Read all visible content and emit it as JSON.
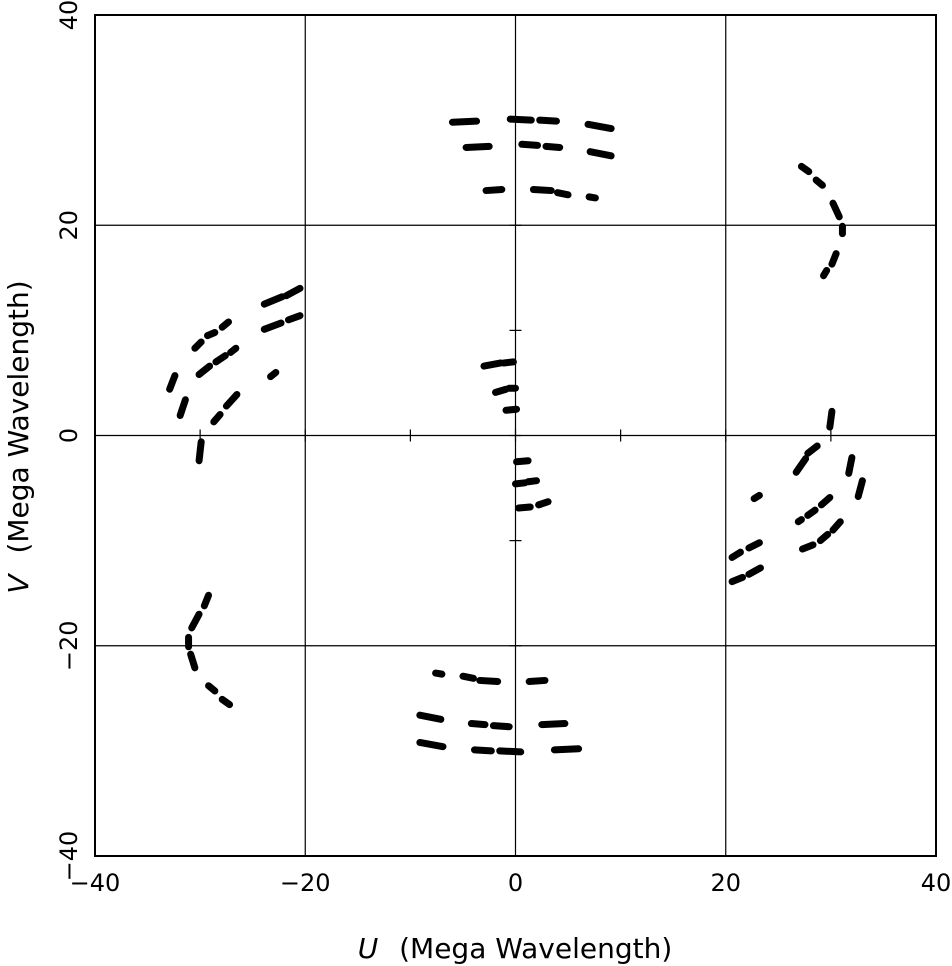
{
  "chart_data": {
    "type": "scatter",
    "xlabel_var": "U",
    "xlabel_unit": "(Mega Wavelength)",
    "ylabel_var": "V",
    "ylabel_unit": "(Mega Wavelength)",
    "xlim": [
      -40,
      40
    ],
    "ylim": [
      -40,
      40
    ],
    "x_ticks": [
      -40,
      -20,
      0,
      20,
      40
    ],
    "y_ticks": [
      -40,
      -20,
      0,
      20,
      40
    ],
    "x_tick_labels": [
      "−40",
      "−20",
      "0",
      "20",
      "40"
    ],
    "y_tick_labels": [
      "−40",
      "−20",
      "0",
      "20",
      "40"
    ],
    "grid": true,
    "marker_color": "#000000",
    "segments": [
      [
        [
          -6,
          29.8
        ],
        [
          -3.7,
          29.9
        ]
      ],
      [
        [
          -0.5,
          30.1
        ],
        [
          1.5,
          30.0
        ]
      ],
      [
        [
          2.3,
          30.0
        ],
        [
          3.9,
          29.9
        ]
      ],
      [
        [
          6.9,
          29.6
        ],
        [
          9.1,
          29.2
        ]
      ],
      [
        [
          -4.7,
          27.4
        ],
        [
          -2.5,
          27.5
        ]
      ],
      [
        [
          0.6,
          27.7
        ],
        [
          2.1,
          27.6
        ]
      ],
      [
        [
          2.9,
          27.5
        ],
        [
          4.2,
          27.4
        ]
      ],
      [
        [
          7.1,
          27.0
        ],
        [
          9.1,
          26.6
        ]
      ],
      [
        [
          -2.8,
          23.3
        ],
        [
          -1.3,
          23.4
        ]
      ],
      [
        [
          1.7,
          23.4
        ],
        [
          3.4,
          23.3
        ]
      ],
      [
        [
          4.0,
          23.1
        ],
        [
          5.0,
          22.9
        ]
      ],
      [
        [
          7.0,
          22.7
        ],
        [
          7.6,
          22.6
        ]
      ],
      [
        [
          27.2,
          25.6
        ],
        [
          27.9,
          25.1
        ]
      ],
      [
        [
          28.6,
          24.3
        ],
        [
          29.2,
          23.8
        ]
      ],
      [
        [
          30.2,
          22.1
        ],
        [
          30.8,
          20.8
        ]
      ],
      [
        [
          31.1,
          19.9
        ],
        [
          31.1,
          19.2
        ]
      ],
      [
        [
          30.5,
          17.3
        ],
        [
          30.1,
          16.3
        ]
      ],
      [
        [
          29.6,
          15.7
        ],
        [
          29.3,
          15.2
        ]
      ],
      [
        [
          -23.9,
          12.5
        ],
        [
          -22.2,
          13.2
        ]
      ],
      [
        [
          -21.8,
          13.3
        ],
        [
          -20.5,
          14.0
        ]
      ],
      [
        [
          -23.9,
          10.1
        ],
        [
          -22.3,
          10.7
        ]
      ],
      [
        [
          -21.6,
          11.0
        ],
        [
          -20.5,
          11.4
        ]
      ],
      [
        [
          -30.5,
          8.3
        ],
        [
          -29.9,
          8.9
        ]
      ],
      [
        [
          -29.3,
          9.5
        ],
        [
          -28.6,
          9.8
        ]
      ],
      [
        [
          -27.9,
          10.3
        ],
        [
          -27.3,
          10.8
        ]
      ],
      [
        [
          -30.1,
          5.8
        ],
        [
          -29.1,
          6.6
        ]
      ],
      [
        [
          -28.5,
          7.0
        ],
        [
          -27.6,
          7.6
        ]
      ],
      [
        [
          -27.1,
          7.9
        ],
        [
          -26.6,
          8.3
        ]
      ],
      [
        [
          -32.9,
          4.4
        ],
        [
          -32.4,
          5.7
        ]
      ],
      [
        [
          -31.9,
          1.9
        ],
        [
          -31.4,
          3.4
        ]
      ],
      [
        [
          -28.7,
          1.3
        ],
        [
          -28.1,
          2.0
        ]
      ],
      [
        [
          -27.5,
          2.8
        ],
        [
          -26.5,
          3.9
        ]
      ],
      [
        [
          -23.3,
          5.6
        ],
        [
          -22.8,
          6.0
        ]
      ],
      [
        [
          -30.1,
          -2.4
        ],
        [
          -29.9,
          -0.6
        ]
      ],
      [
        [
          -3.0,
          6.6
        ],
        [
          -1.4,
          6.9
        ]
      ],
      [
        [
          -1.1,
          6.9
        ],
        [
          -0.2,
          7.0
        ]
      ],
      [
        [
          -1.9,
          4.1
        ],
        [
          -0.9,
          4.4
        ]
      ],
      [
        [
          -0.6,
          4.5
        ],
        [
          0.0,
          4.5
        ]
      ],
      [
        [
          -0.9,
          2.4
        ],
        [
          0.1,
          2.5
        ]
      ],
      [
        [
          0.1,
          -2.5
        ],
        [
          1.2,
          -2.4
        ]
      ],
      [
        [
          0.0,
          -4.6
        ],
        [
          0.9,
          -4.5
        ]
      ],
      [
        [
          1.2,
          -4.4
        ],
        [
          2.0,
          -4.3
        ]
      ],
      [
        [
          0.3,
          -6.9
        ],
        [
          1.4,
          -6.8
        ]
      ],
      [
        [
          2.2,
          -6.6
        ],
        [
          3.1,
          -6.3
        ]
      ],
      [
        [
          29.9,
          0.8
        ],
        [
          30.1,
          2.3
        ]
      ],
      [
        [
          28.7,
          -1.0
        ],
        [
          27.8,
          -1.7
        ]
      ],
      [
        [
          27.6,
          -2.2
        ],
        [
          26.7,
          -3.5
        ]
      ],
      [
        [
          32.0,
          -2.1
        ],
        [
          31.7,
          -3.6
        ]
      ],
      [
        [
          33.0,
          -4.3
        ],
        [
          32.6,
          -5.8
        ]
      ],
      [
        [
          29.9,
          -5.9
        ],
        [
          29.1,
          -6.6
        ]
      ],
      [
        [
          28.5,
          -7.1
        ],
        [
          27.8,
          -7.6
        ]
      ],
      [
        [
          27.2,
          -8.0
        ],
        [
          26.9,
          -8.2
        ]
      ],
      [
        [
          30.9,
          -8.2
        ],
        [
          30.2,
          -9.0
        ]
      ],
      [
        [
          29.7,
          -9.4
        ],
        [
          29.0,
          -10.0
        ]
      ],
      [
        [
          28.3,
          -10.4
        ],
        [
          27.3,
          -10.8
        ]
      ],
      [
        [
          22.7,
          -6.0
        ],
        [
          23.2,
          -5.7
        ]
      ],
      [
        [
          20.6,
          -11.6
        ],
        [
          21.4,
          -11.1
        ]
      ],
      [
        [
          22.2,
          -10.7
        ],
        [
          23.2,
          -10.2
        ]
      ],
      [
        [
          20.6,
          -13.9
        ],
        [
          21.6,
          -13.5
        ]
      ],
      [
        [
          22.2,
          -13.2
        ],
        [
          23.3,
          -12.6
        ]
      ],
      [
        [
          -29.6,
          -16.2
        ],
        [
          -29.2,
          -15.2
        ]
      ],
      [
        [
          -30.8,
          -18.3
        ],
        [
          -30.1,
          -17.0
        ]
      ],
      [
        [
          -31.1,
          -19.2
        ],
        [
          -31.1,
          -20.1
        ]
      ],
      [
        [
          -30.9,
          -20.8
        ],
        [
          -30.5,
          -22.1
        ]
      ],
      [
        [
          -29.2,
          -23.8
        ],
        [
          -28.6,
          -24.3
        ]
      ],
      [
        [
          -27.9,
          -25.1
        ],
        [
          -27.2,
          -25.6
        ]
      ],
      [
        [
          -7.6,
          -22.6
        ],
        [
          -7.0,
          -22.7
        ]
      ],
      [
        [
          -5.0,
          -22.9
        ],
        [
          -4.0,
          -23.1
        ]
      ],
      [
        [
          -3.4,
          -23.3
        ],
        [
          -1.7,
          -23.4
        ]
      ],
      [
        [
          1.3,
          -23.4
        ],
        [
          2.8,
          -23.3
        ]
      ],
      [
        [
          -9.1,
          -26.6
        ],
        [
          -7.1,
          -27.0
        ]
      ],
      [
        [
          -4.2,
          -27.4
        ],
        [
          -2.9,
          -27.5
        ]
      ],
      [
        [
          -2.1,
          -27.6
        ],
        [
          -0.6,
          -27.7
        ]
      ],
      [
        [
          2.5,
          -27.5
        ],
        [
          4.7,
          -27.4
        ]
      ],
      [
        [
          -9.1,
          -29.2
        ],
        [
          -6.9,
          -29.6
        ]
      ],
      [
        [
          -3.9,
          -29.9
        ],
        [
          -2.3,
          -30.0
        ]
      ],
      [
        [
          -1.5,
          -30.0
        ],
        [
          0.5,
          -30.1
        ]
      ],
      [
        [
          3.7,
          -29.9
        ],
        [
          6.0,
          -29.8
        ]
      ]
    ]
  }
}
